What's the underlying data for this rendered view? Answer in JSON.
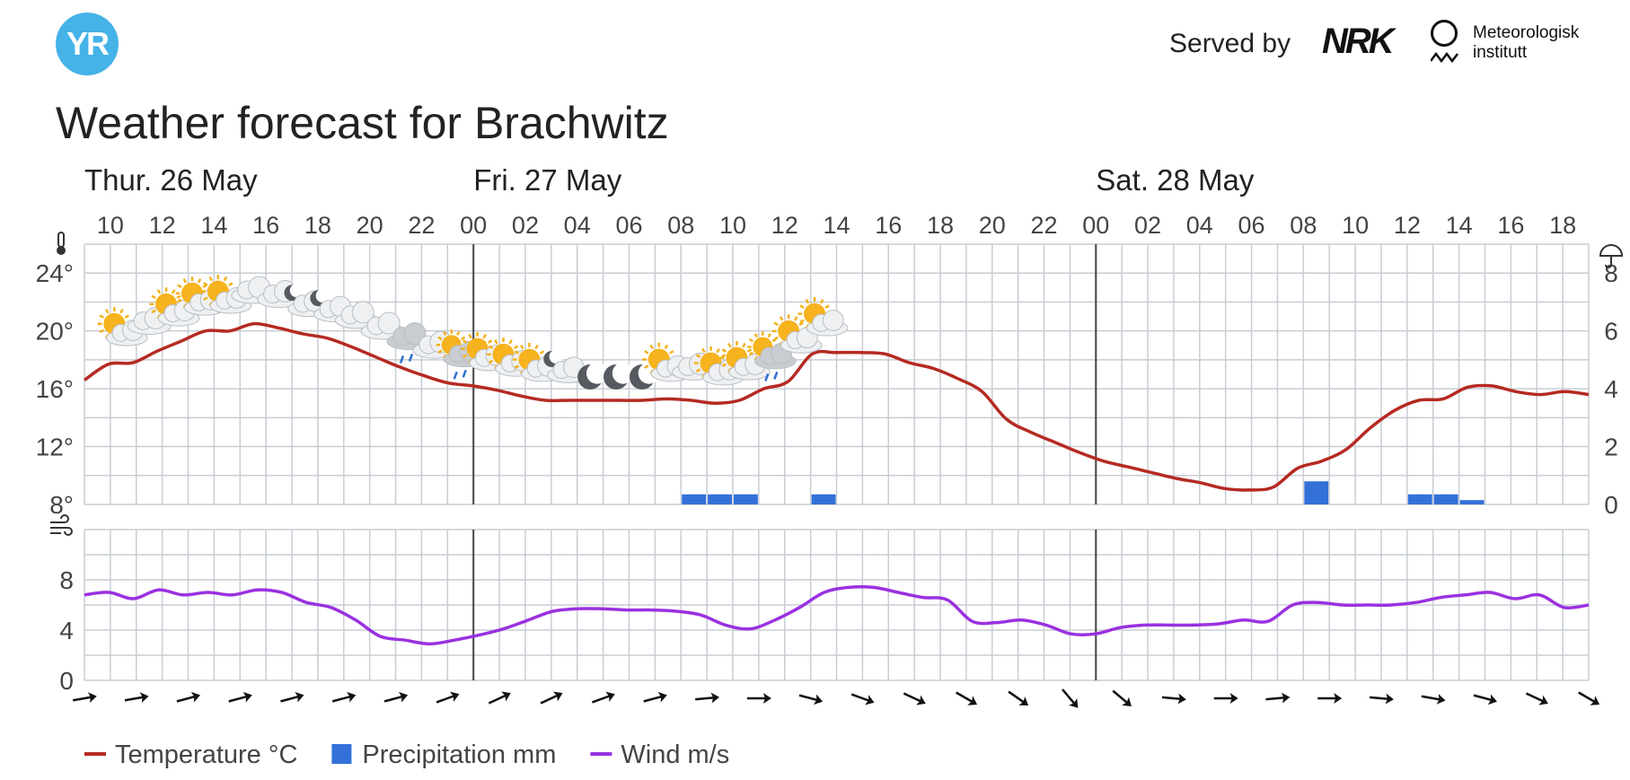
{
  "header": {
    "logo_text": "YR",
    "served_by": "Served by",
    "nrk_logo": "NRK",
    "met_line1": "Meteorologisk",
    "met_line2": "institutt"
  },
  "title": "Weather forecast for Brachwitz",
  "chart_data": {
    "type": "line",
    "days": [
      {
        "label": "Thur. 26 May",
        "start_hour": 9
      },
      {
        "label": "Fri. 27 May",
        "start_hour": 24
      },
      {
        "label": "Sat. 28 May",
        "start_hour": 48
      }
    ],
    "hour_tick_labels": [
      "10",
      "12",
      "14",
      "16",
      "18",
      "20",
      "22",
      "00",
      "02",
      "04",
      "06",
      "08",
      "10",
      "12",
      "14",
      "16",
      "18",
      "20",
      "22",
      "00",
      "02",
      "04",
      "06",
      "08",
      "10",
      "12",
      "14",
      "16",
      "18"
    ],
    "x_range_hours": [
      9,
      67
    ],
    "temperature": {
      "unit": "°C",
      "ylim": [
        8,
        26
      ],
      "ticks": [
        8,
        12,
        16,
        20,
        24
      ],
      "values": [
        16.6,
        17.7,
        17.8,
        18.6,
        19.3,
        20.0,
        20.0,
        20.5,
        20.2,
        19.8,
        19.5,
        18.9,
        18.2,
        17.5,
        16.9,
        16.4,
        16.2,
        15.9,
        15.5,
        15.2,
        15.2,
        15.2,
        15.2,
        15.2,
        15.3,
        15.2,
        15.0,
        15.2,
        16.0,
        16.5,
        18.4,
        18.5,
        18.5,
        18.4,
        17.8,
        17.4,
        16.7,
        15.8,
        13.9,
        13.0,
        12.3,
        11.6,
        11.0,
        10.6,
        10.2,
        9.8,
        9.5,
        9.1,
        9.0,
        9.2,
        10.5,
        11.0,
        11.8,
        13.3,
        14.5,
        15.2,
        15.3,
        16.1,
        16.2,
        15.8,
        15.6,
        15.8,
        15.6
      ]
    },
    "precipitation": {
      "unit": "mm",
      "ylim": [
        0,
        9
      ],
      "ticks": [
        0,
        2,
        4,
        6,
        8
      ],
      "bars": [
        {
          "hour": 32,
          "value": 0.35
        },
        {
          "hour": 33,
          "value": 0.35
        },
        {
          "hour": 34,
          "value": 0.35
        },
        {
          "hour": 37,
          "value": 0.35
        },
        {
          "hour": 56,
          "value": 0.8
        },
        {
          "hour": 60,
          "value": 0.35
        },
        {
          "hour": 61,
          "value": 0.35
        },
        {
          "hour": 62,
          "value": 0.15
        }
      ]
    },
    "wind": {
      "unit": "m/s",
      "ylim": [
        0,
        12
      ],
      "ticks": [
        0,
        4,
        8
      ],
      "values": [
        6.8,
        7.0,
        6.5,
        7.2,
        6.8,
        7.0,
        6.8,
        7.2,
        7.0,
        6.2,
        5.8,
        4.8,
        3.5,
        3.2,
        2.9,
        3.2,
        3.6,
        4.1,
        4.8,
        5.5,
        5.7,
        5.7,
        5.6,
        5.6,
        5.5,
        5.2,
        4.4,
        4.1,
        4.8,
        5.8,
        7.0,
        7.4,
        7.4,
        7.0,
        6.6,
        6.4,
        4.7,
        4.6,
        4.8,
        4.4,
        3.7,
        3.7,
        4.2,
        4.4,
        4.4,
        4.4,
        4.5,
        4.8,
        4.7,
        6.0,
        6.2,
        6.0,
        6.0,
        6.0,
        6.2,
        6.6,
        6.8,
        7.0,
        6.5,
        6.8,
        5.8,
        6.0
      ]
    },
    "wind_direction_deg": [
      260,
      260,
      255,
      255,
      255,
      255,
      255,
      250,
      245,
      245,
      250,
      255,
      265,
      270,
      285,
      290,
      295,
      300,
      305,
      320,
      310,
      275,
      270,
      265,
      270,
      275,
      280,
      285,
      295,
      300,
      305
    ],
    "symbols": [
      {
        "hour": 10,
        "icon": "partly-cloudy-day-icon"
      },
      {
        "hour": 11,
        "icon": "cloudy-icon"
      },
      {
        "hour": 12,
        "icon": "partly-cloudy-day-icon"
      },
      {
        "hour": 13,
        "icon": "partly-cloudy-day-icon"
      },
      {
        "hour": 14,
        "icon": "partly-cloudy-day-icon"
      },
      {
        "hour": 15,
        "icon": "cloudy-icon"
      },
      {
        "hour": 16,
        "icon": "cloudy-icon"
      },
      {
        "hour": 17,
        "icon": "partly-cloudy-night-icon"
      },
      {
        "hour": 18,
        "icon": "partly-cloudy-night-icon"
      },
      {
        "hour": 19,
        "icon": "cloudy-icon"
      },
      {
        "hour": 20,
        "icon": "cloudy-icon"
      },
      {
        "hour": 21,
        "icon": "rain-showers-icon"
      },
      {
        "hour": 22,
        "icon": "cloudy-icon"
      },
      {
        "hour": 23,
        "icon": "rain-showers-day-icon"
      },
      {
        "hour": 24,
        "icon": "partly-cloudy-day-icon"
      },
      {
        "hour": 25,
        "icon": "partly-cloudy-day-icon"
      },
      {
        "hour": 26,
        "icon": "partly-cloudy-day-icon"
      },
      {
        "hour": 27,
        "icon": "partly-cloudy-night-icon"
      },
      {
        "hour": 28,
        "icon": "moon-icon"
      },
      {
        "hour": 29,
        "icon": "moon-icon"
      },
      {
        "hour": 30,
        "icon": "moon-icon"
      },
      {
        "hour": 31,
        "icon": "partly-cloudy-day-icon"
      },
      {
        "hour": 32,
        "icon": "cloudy-icon"
      },
      {
        "hour": 33,
        "icon": "partly-cloudy-day-icon"
      },
      {
        "hour": 34,
        "icon": "partly-cloudy-day-icon"
      },
      {
        "hour": 35,
        "icon": "rain-showers-day-icon"
      },
      {
        "hour": 36,
        "icon": "partly-cloudy-day-icon"
      },
      {
        "hour": 37,
        "icon": "partly-cloudy-day-icon"
      }
    ],
    "legend": [
      {
        "label": "Temperature °C",
        "color": "#b52a22",
        "kind": "line"
      },
      {
        "label": "Precipitation mm",
        "color": "#3371d9",
        "kind": "bar"
      },
      {
        "label": "Wind m/s",
        "color": "#9a31e0",
        "kind": "line"
      }
    ],
    "axis_icons": {
      "temperature": "thermometer-icon",
      "precipitation": "umbrella-icon",
      "wind": "wind-icon"
    },
    "colors": {
      "grid": "#c8cdd3",
      "day_separator": "#444444",
      "temperature": "#b52a22",
      "precipitation": "#3371d9",
      "wind": "#9a31e0",
      "arrow": "#111111"
    }
  }
}
